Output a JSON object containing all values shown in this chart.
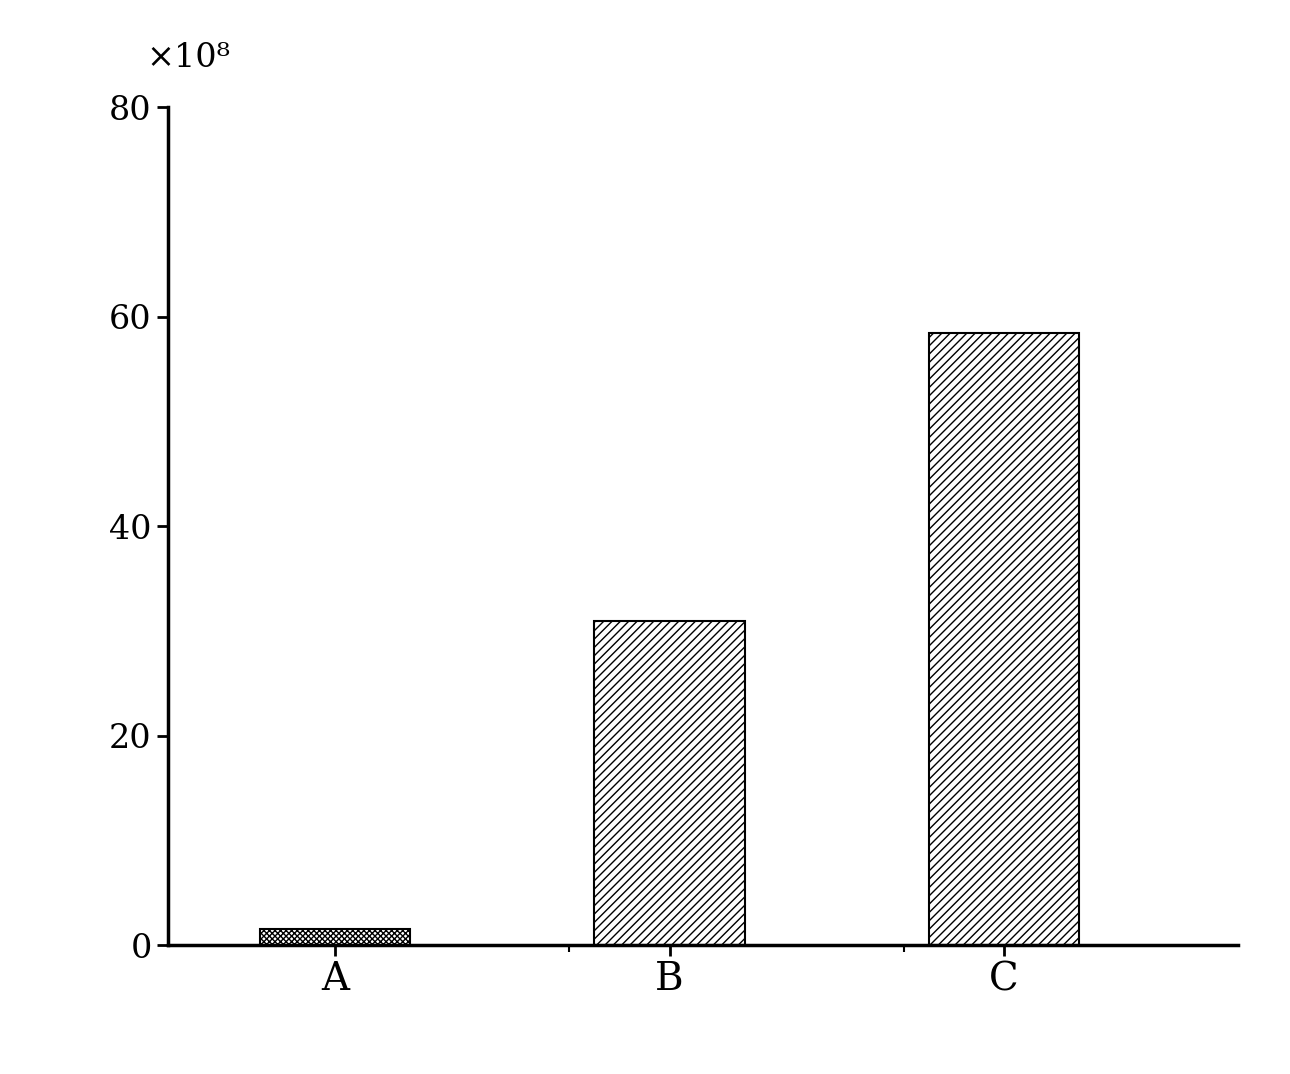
{
  "categories": [
    "A",
    "B",
    "C"
  ],
  "values": [
    1.5,
    31.0,
    58.5
  ],
  "ylim": [
    0,
    80
  ],
  "yticks": [
    0,
    20,
    40,
    60,
    80
  ],
  "ylabel_multiplier": "×10⁸",
  "bar_width": 0.45,
  "bar_color": "white",
  "bar_edgecolor": "black",
  "hatch_patterns": [
    "xxxxxx",
    "////",
    "////"
  ],
  "background_color": "#ffffff",
  "tick_fontsize": 24,
  "label_fontsize": 28,
  "multiplier_fontsize": 24,
  "spine_linewidth": 2.5,
  "xlim": [
    -0.5,
    2.7
  ]
}
